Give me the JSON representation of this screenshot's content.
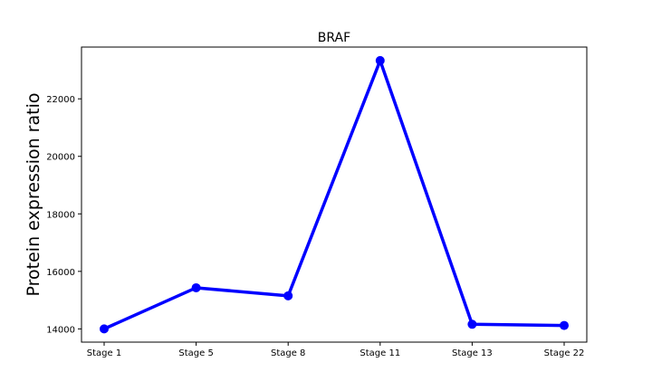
{
  "chart_data": {
    "type": "line",
    "title": "BRAF",
    "xlabel": "",
    "ylabel": "Protein expression ratio",
    "categories": [
      "Stage 1",
      "Stage 5",
      "Stage 8",
      "Stage 11",
      "Stage 13",
      "Stage 22"
    ],
    "series": [
      {
        "values": [
          14000,
          15430,
          15150,
          23330,
          14160,
          14120
        ],
        "color": "#0000ff"
      }
    ],
    "yticks": [
      14000,
      16000,
      18000,
      20000,
      22000
    ],
    "ytick_labels": [
      "14000",
      "16000",
      "18000",
      "20000",
      "22000"
    ],
    "ylim": [
      13540,
      23800
    ],
    "grid": false,
    "legend": false
  }
}
